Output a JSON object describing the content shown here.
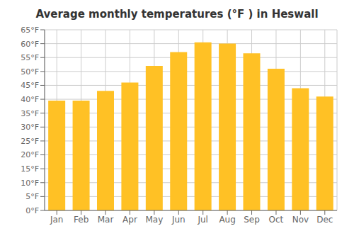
{
  "chart_data": {
    "type": "bar",
    "title": "Average monthly temperatures (°F ) in Heswall",
    "categories": [
      "Jan",
      "Feb",
      "Mar",
      "Apr",
      "May",
      "Jun",
      "Jul",
      "Aug",
      "Sep",
      "Oct",
      "Nov",
      "Dec"
    ],
    "values": [
      39.5,
      39.5,
      43.0,
      46.0,
      52.0,
      57.0,
      60.5,
      60.0,
      56.5,
      51.0,
      44.0,
      41.0
    ],
    "color": "#FFC125",
    "ylim": [
      0,
      65
    ],
    "yticks": [
      {
        "value": 0,
        "label": "0°F"
      },
      {
        "value": 5,
        "label": "5°F"
      },
      {
        "value": 10,
        "label": "10°F"
      },
      {
        "value": 15,
        "label": "15°F"
      },
      {
        "value": 20,
        "label": "20°F"
      },
      {
        "value": 25,
        "label": "25°F"
      },
      {
        "value": 30,
        "label": "30°F"
      },
      {
        "value": 35,
        "label": "35°F"
      },
      {
        "value": 40,
        "label": "40°F"
      },
      {
        "value": 45,
        "label": "45°F"
      },
      {
        "value": 50,
        "label": "50°F"
      },
      {
        "value": 55,
        "label": "55°F"
      },
      {
        "value": 60,
        "label": "60°F"
      },
      {
        "value": 65,
        "label": "65°F"
      }
    ],
    "grid": true
  }
}
